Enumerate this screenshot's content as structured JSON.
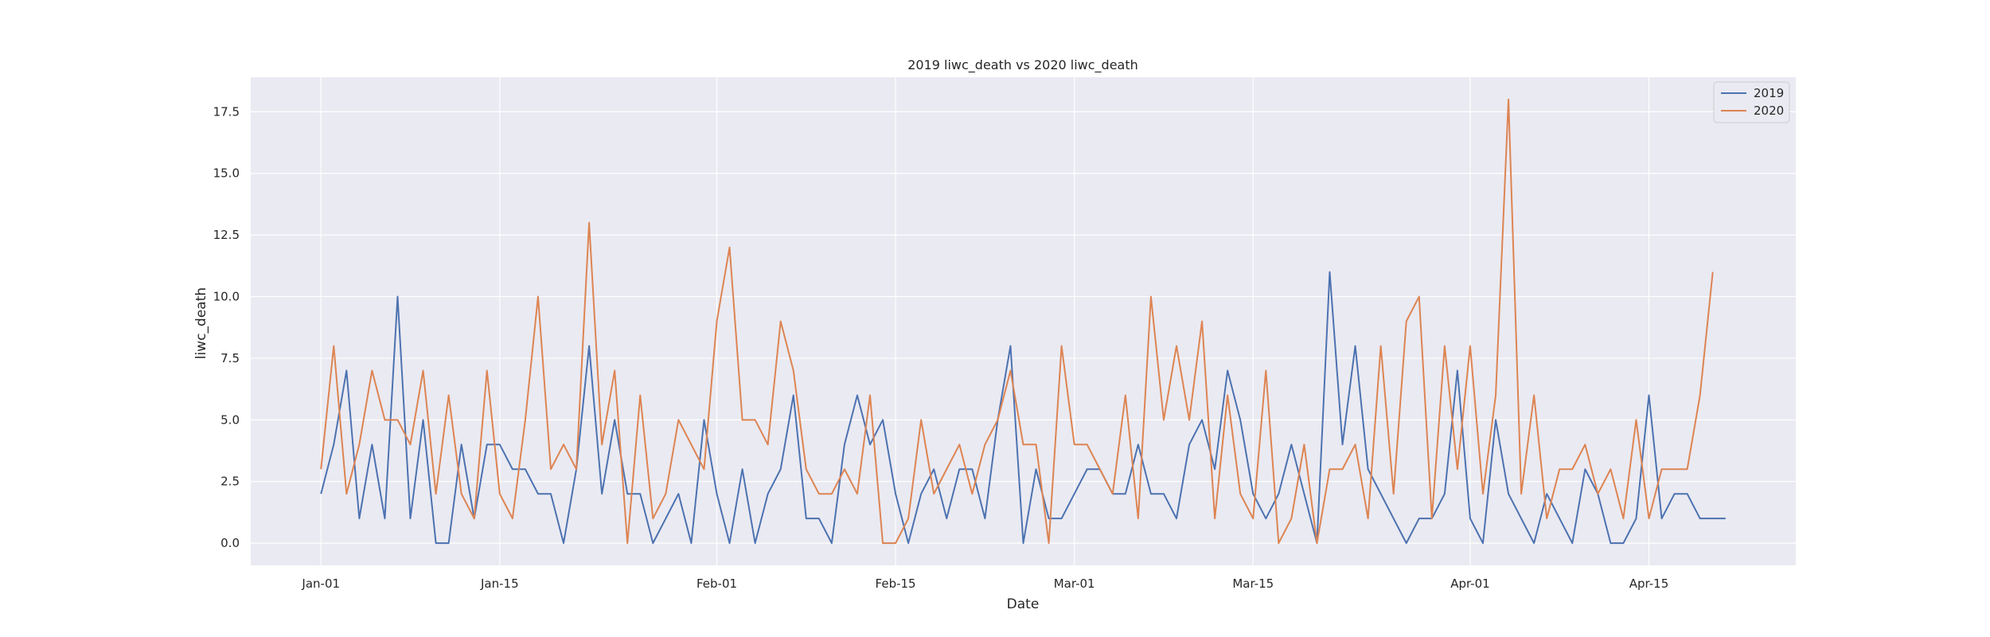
{
  "chart_data": {
    "type": "line",
    "title": "2019 liwc_death vs 2020 liwc_death",
    "xlabel": "Date",
    "ylabel": "liwc_death",
    "x_start": "Jan-01",
    "x_end": "Apr-21",
    "x_ticks": [
      "Jan-01",
      "Jan-15",
      "Feb-01",
      "Feb-15",
      "Mar-01",
      "Mar-15",
      "Apr-01",
      "Apr-15"
    ],
    "y_ticks": [
      "0.0",
      "2.5",
      "5.0",
      "7.5",
      "10.0",
      "12.5",
      "15.0",
      "17.5"
    ],
    "ylim": [
      -0.9,
      18.9
    ],
    "grid": true,
    "legend_position": "top-right",
    "series": [
      {
        "name": "2019",
        "color": "#4c72b0",
        "values": [
          2,
          4,
          7,
          1,
          4,
          1,
          10,
          1,
          5,
          0,
          0,
          4,
          1,
          4,
          4,
          3,
          3,
          2,
          2,
          0,
          3,
          8,
          2,
          5,
          2,
          2,
          0,
          1,
          2,
          0,
          5,
          2,
          0,
          3,
          0,
          2,
          3,
          6,
          1,
          1,
          0,
          4,
          6,
          4,
          5,
          2,
          0,
          2,
          3,
          1,
          3,
          3,
          1,
          5,
          8,
          0,
          3,
          1,
          1,
          2,
          3,
          3,
          2,
          2,
          4,
          2,
          2,
          1,
          4,
          5,
          3,
          7,
          5,
          2,
          1,
          2,
          4,
          2,
          0,
          11,
          4,
          8,
          3,
          2,
          1,
          0,
          1,
          1,
          2,
          7,
          1,
          0,
          5,
          2,
          1,
          0,
          2,
          1,
          0,
          3,
          2,
          0,
          0,
          1,
          6,
          1,
          2,
          2,
          1,
          1,
          1
        ]
      },
      {
        "name": "2020",
        "color": "#dd8452",
        "values": [
          3,
          8,
          2,
          4,
          7,
          5,
          5,
          4,
          7,
          2,
          6,
          2,
          1,
          7,
          2,
          1,
          5,
          10,
          3,
          4,
          3,
          13,
          4,
          7,
          0,
          6,
          1,
          2,
          5,
          4,
          3,
          9,
          12,
          5,
          5,
          4,
          9,
          7,
          3,
          2,
          2,
          3,
          2,
          6,
          0,
          0,
          1,
          5,
          2,
          3,
          4,
          2,
          4,
          5,
          7,
          4,
          4,
          0,
          8,
          4,
          4,
          3,
          2,
          6,
          1,
          10,
          5,
          8,
          5,
          9,
          1,
          6,
          2,
          1,
          7,
          0,
          1,
          4,
          0,
          3,
          3,
          4,
          1,
          8,
          2,
          9,
          10,
          1,
          8,
          3,
          8,
          2,
          6,
          18,
          2,
          6,
          1,
          3,
          3,
          4,
          2,
          3,
          1,
          5,
          1,
          3,
          3,
          3,
          6,
          11
        ]
      }
    ]
  }
}
